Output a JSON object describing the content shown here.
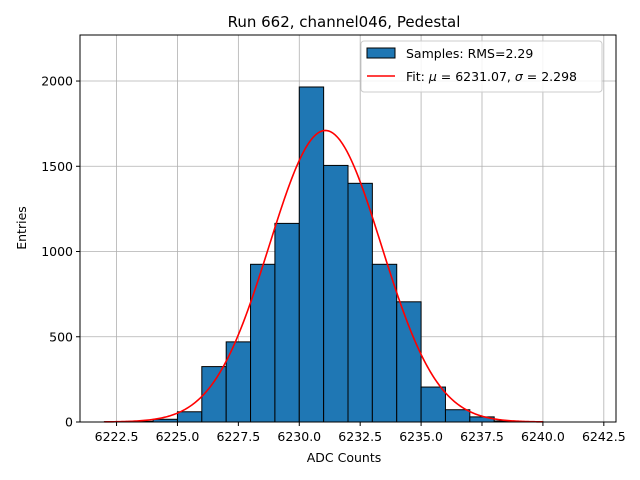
{
  "chart_data": {
    "type": "bar",
    "title": "Run 662, channel046, Pedestal",
    "xlabel": "ADC Counts",
    "ylabel": "Entries",
    "xlim": [
      6221.0,
      6243.0
    ],
    "ylim": [
      0,
      2270
    ],
    "x_ticks": [
      6222.5,
      6225.0,
      6227.5,
      6230.0,
      6232.5,
      6235.0,
      6237.5,
      6240.0,
      6242.5
    ],
    "x_tick_labels": [
      "6222.5",
      "6225.0",
      "6227.5",
      "6230.0",
      "6232.5",
      "6235.0",
      "6237.5",
      "6240.0",
      "6242.5"
    ],
    "y_ticks": [
      0,
      500,
      1000,
      1500,
      2000
    ],
    "y_tick_labels": [
      "0",
      "500",
      "1000",
      "1500",
      "2000"
    ],
    "grid": true,
    "legend_position": "top-right",
    "histogram": {
      "name": "Samples: RMS=2.29",
      "color": "#1f77b4",
      "edge_color": "#000000",
      "bins": [
        {
          "left": 6222.0,
          "right": 6223.0,
          "value": 2
        },
        {
          "left": 6223.0,
          "right": 6224.0,
          "value": 4
        },
        {
          "left": 6224.0,
          "right": 6225.0,
          "value": 16
        },
        {
          "left": 6225.0,
          "right": 6226.0,
          "value": 60
        },
        {
          "left": 6226.0,
          "right": 6227.0,
          "value": 325
        },
        {
          "left": 6227.0,
          "right": 6228.0,
          "value": 470
        },
        {
          "left": 6228.0,
          "right": 6229.0,
          "value": 925
        },
        {
          "left": 6229.0,
          "right": 6230.0,
          "value": 1165
        },
        {
          "left": 6230.0,
          "right": 6231.0,
          "value": 1965
        },
        {
          "left": 6231.0,
          "right": 6232.0,
          "value": 1505
        },
        {
          "left": 6232.0,
          "right": 6233.0,
          "value": 1400
        },
        {
          "left": 6233.0,
          "right": 6234.0,
          "value": 925
        },
        {
          "left": 6234.0,
          "right": 6235.0,
          "value": 705
        },
        {
          "left": 6235.0,
          "right": 6236.0,
          "value": 205
        },
        {
          "left": 6236.0,
          "right": 6237.0,
          "value": 72
        },
        {
          "left": 6237.0,
          "right": 6238.0,
          "value": 30
        },
        {
          "left": 6238.0,
          "right": 6239.0,
          "value": 6
        },
        {
          "left": 6239.0,
          "right": 6240.0,
          "value": 2
        }
      ]
    },
    "fit": {
      "name": "Fit: μ = 6231.07, σ = 2.298",
      "label_prefix": "Fit: ",
      "mu_symbol": "μ",
      "mu_text": " = 6231.07, ",
      "sigma_symbol": "σ",
      "sigma_text": " = 2.298",
      "color": "#ff0000",
      "mu": 6231.07,
      "sigma": 2.298,
      "amplitude": 1710,
      "x_range": [
        6222.0,
        6240.0
      ]
    }
  }
}
